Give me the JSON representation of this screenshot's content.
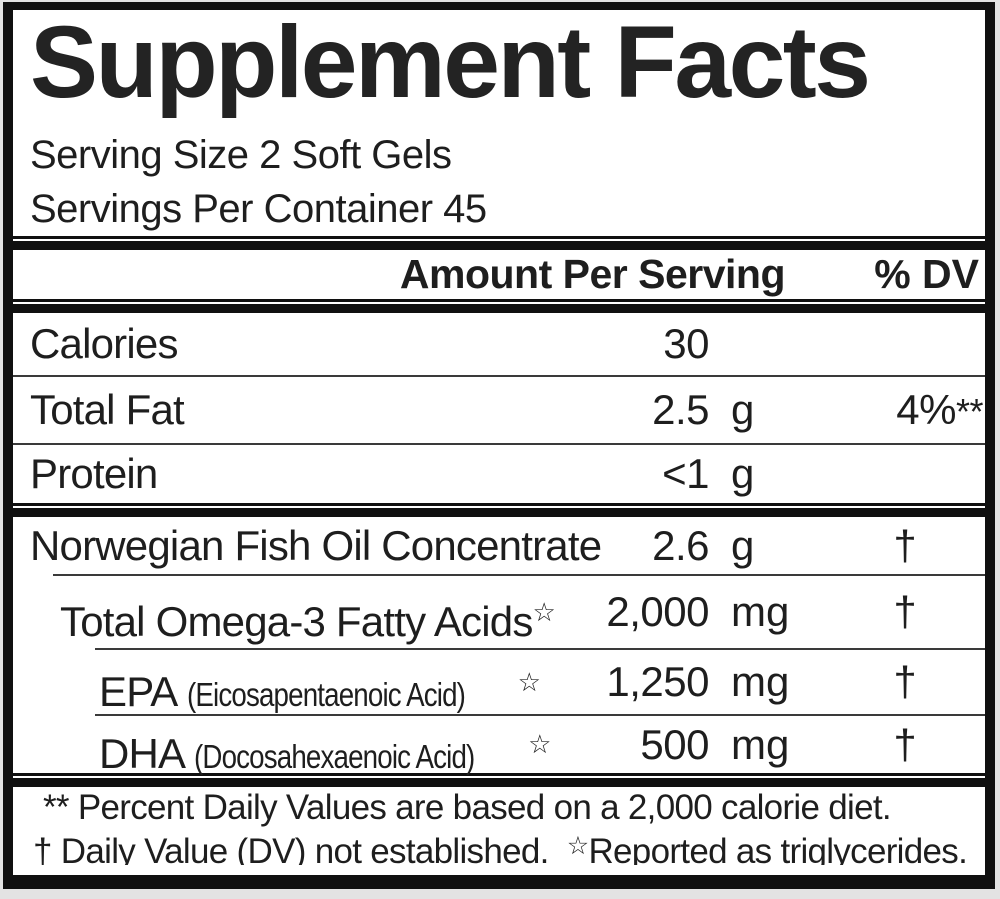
{
  "label": {
    "title": "Supplement Facts",
    "serving_size": "Serving Size 2 Soft Gels",
    "servings_per_container": "Servings Per Container 45",
    "columns": {
      "amount": "Amount Per Serving",
      "dv": "% DV"
    },
    "macro_rows": [
      {
        "label": "Calories",
        "amount": "30",
        "unit": "",
        "dv": "",
        "dv_sup": ""
      },
      {
        "label": "Total Fat",
        "amount": "2.5",
        "unit": "g",
        "dv": "4%",
        "dv_sup": "**"
      },
      {
        "label": "Protein",
        "amount": "<1",
        "unit": "g",
        "dv": "",
        "dv_sup": ""
      }
    ],
    "ingredient_rows": [
      {
        "label": "Norwegian Fish Oil Concentrate",
        "sub": "",
        "star": "",
        "amount": "2.6",
        "unit": "g",
        "dv": "†"
      },
      {
        "label": "Total Omega-3 Fatty Acids",
        "sub": "",
        "star": "☆",
        "amount": "2,000",
        "unit": "mg",
        "dv": "†"
      },
      {
        "label": "EPA",
        "sub": "(Eicosapentaenoic Acid)",
        "star": "☆",
        "amount": "1,250",
        "unit": "mg",
        "dv": "†"
      },
      {
        "label": "DHA",
        "sub": "(Docosahexaenoic Acid)",
        "star": "☆",
        "amount": "500",
        "unit": "mg",
        "dv": "†"
      }
    ],
    "footnotes": {
      "line1": "** Percent Daily Values are based on a 2,000 calorie diet.",
      "line2_dagger": "† Daily Value (DV) not established.",
      "line2_star": "☆",
      "line2_star_text": "Reported as triglycerides."
    },
    "colors": {
      "text": "#1e1e1e",
      "rule": "#101010",
      "page_bg": "#e3e3e3"
    }
  }
}
